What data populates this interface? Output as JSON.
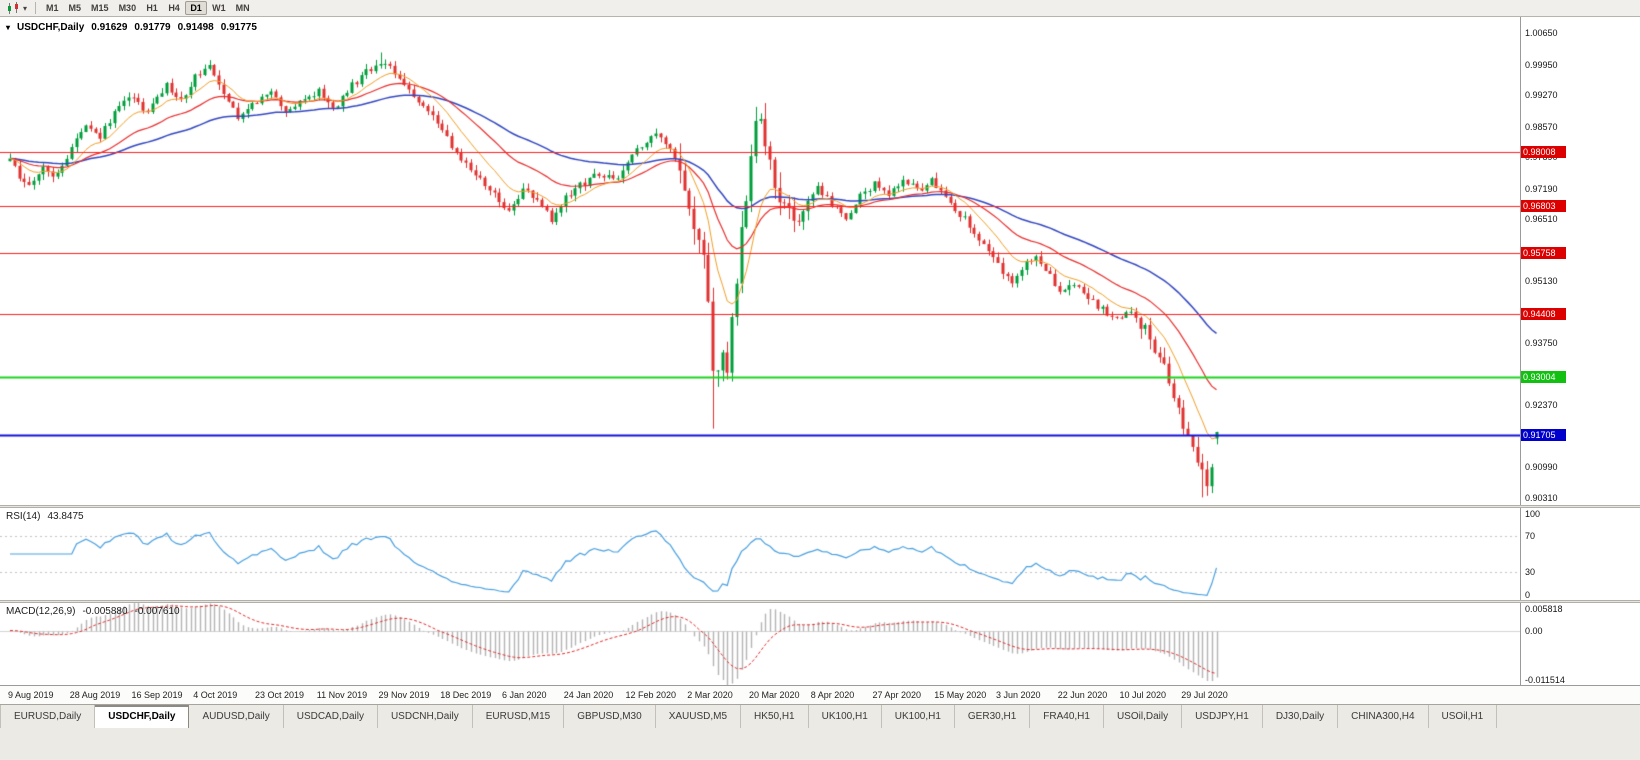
{
  "toolbar": {
    "timeframes": [
      "M1",
      "M5",
      "M15",
      "M30",
      "H1",
      "H4",
      "D1",
      "W1",
      "MN"
    ],
    "active_timeframe": "D1",
    "dropdown_icon": "▾"
  },
  "chart_data": {
    "type": "candlestick",
    "symbol": "USDCHF",
    "timeframe": "Daily",
    "title": "USDCHF,Daily",
    "title_marker": "▾",
    "ohlc": {
      "open": "0.91629",
      "high": "0.91779",
      "low": "0.91498",
      "close": "0.91775"
    },
    "colors": {
      "background": "#ffffff",
      "up": "#009e3c",
      "down": "#e03232",
      "axis_text": "#141414"
    },
    "price_axis": {
      "min": 0.9015,
      "max": 1.0101,
      "ticks": [
        "1.00650",
        "0.99950",
        "0.99270",
        "0.98570",
        "0.97890",
        "0.97190",
        "0.96510",
        "0.95820",
        "0.95130",
        "0.94440",
        "0.93750",
        "0.93060",
        "0.92370",
        "0.91680",
        "0.90990",
        "0.90310"
      ],
      "hidden_ticks": [
        "0.95820",
        "0.94440",
        "0.93060",
        "0.91680"
      ]
    },
    "time_axis": {
      "labels": [
        "9 Aug 2019",
        "28 Aug 2019",
        "16 Sep 2019",
        "4 Oct 2019",
        "23 Oct 2019",
        "11 Nov 2019",
        "29 Nov 2019",
        "18 Dec 2019",
        "6 Jan 2020",
        "24 Jan 2020",
        "12 Feb 2020",
        "2 Mar 2020",
        "20 Mar 2020",
        "8 Apr 2020",
        "27 Apr 2020",
        "15 May 2020",
        "3 Jun 2020",
        "22 Jun 2020",
        "10 Jul 2020",
        "29 Jul 2020"
      ],
      "label_indices": [
        0,
        13,
        26,
        39,
        52,
        65,
        78,
        91,
        104,
        117,
        130,
        143,
        156,
        169,
        182,
        195,
        208,
        221,
        234,
        247
      ]
    },
    "horizontal_lines": [
      {
        "price": 0.98008,
        "label": "0.98008",
        "color": "#ff2020",
        "badge": "#dd0000",
        "width": 1
      },
      {
        "price": 0.96803,
        "label": "0.96803",
        "color": "#ff2020",
        "badge": "#dd0000",
        "width": 1
      },
      {
        "price": 0.95758,
        "label": "0.95758",
        "color": "#ff2020",
        "badge": "#dd0000",
        "width": 1
      },
      {
        "price": 0.94408,
        "label": "0.94408",
        "color": "#ff2020",
        "badge": "#dd0000",
        "width": 1
      },
      {
        "price": 0.93004,
        "label": "0.93004",
        "color": "#1fd41f",
        "badge": "#12c012",
        "width": 2
      },
      {
        "price": 0.91705,
        "label": "0.91705",
        "color": "#1212d8",
        "badge": "#0000cc",
        "width": 2
      }
    ],
    "candles": {
      "count": 255,
      "seed": 20200810,
      "base_volatility": 0.0016,
      "volatility_zones": [
        {
          "from": 141,
          "to": 168,
          "vol": 0.0046
        },
        {
          "from": 238,
          "to": 253,
          "vol": 0.0028
        }
      ],
      "close_waypoints": [
        [
          0,
          0.978
        ],
        [
          2,
          0.9748
        ],
        [
          4,
          0.9725
        ],
        [
          7,
          0.9762
        ],
        [
          9,
          0.9738
        ],
        [
          11,
          0.977
        ],
        [
          13,
          0.9812
        ],
        [
          16,
          0.9862
        ],
        [
          19,
          0.983
        ],
        [
          22,
          0.9892
        ],
        [
          26,
          0.9922
        ],
        [
          29,
          0.9885
        ],
        [
          33,
          0.9948
        ],
        [
          36,
          0.9918
        ],
        [
          39,
          0.9968
        ],
        [
          42,
          0.999
        ],
        [
          45,
          0.9936
        ],
        [
          48,
          0.9882
        ],
        [
          52,
          0.9908
        ],
        [
          55,
          0.9942
        ],
        [
          58,
          0.9888
        ],
        [
          62,
          0.9916
        ],
        [
          65,
          0.9936
        ],
        [
          68,
          0.9896
        ],
        [
          72,
          0.9948
        ],
        [
          75,
          0.9978
        ],
        [
          78,
          1.0002
        ],
        [
          80,
          0.9994
        ],
        [
          83,
          0.9946
        ],
        [
          86,
          0.9906
        ],
        [
          89,
          0.9876
        ],
        [
          91,
          0.9846
        ],
        [
          94,
          0.9802
        ],
        [
          97,
          0.9762
        ],
        [
          100,
          0.9726
        ],
        [
          103,
          0.9692
        ],
        [
          105,
          0.9672
        ],
        [
          108,
          0.9716
        ],
        [
          111,
          0.9692
        ],
        [
          114,
          0.9652
        ],
        [
          117,
          0.9696
        ],
        [
          120,
          0.9726
        ],
        [
          124,
          0.9752
        ],
        [
          127,
          0.9736
        ],
        [
          130,
          0.9776
        ],
        [
          133,
          0.9816
        ],
        [
          136,
          0.9842
        ],
        [
          139,
          0.9812
        ],
        [
          141,
          0.9772
        ],
        [
          143,
          0.9692
        ],
        [
          145,
          0.9612
        ],
        [
          146,
          0.9562
        ],
        [
          147,
          0.9452
        ],
        [
          148,
          0.9332
        ],
        [
          149,
          0.9292
        ],
        [
          150,
          0.9342
        ],
        [
          151,
          0.9302
        ],
        [
          152,
          0.9422
        ],
        [
          153,
          0.9522
        ],
        [
          155,
          0.9702
        ],
        [
          157,
          0.9852
        ],
        [
          158,
          0.9872
        ],
        [
          159,
          0.9802
        ],
        [
          161,
          0.9732
        ],
        [
          163,
          0.9672
        ],
        [
          165,
          0.9642
        ],
        [
          167,
          0.9682
        ],
        [
          170,
          0.9722
        ],
        [
          173,
          0.9682
        ],
        [
          176,
          0.9656
        ],
        [
          179,
          0.97
        ],
        [
          182,
          0.9732
        ],
        [
          185,
          0.9706
        ],
        [
          188,
          0.9742
        ],
        [
          191,
          0.9716
        ],
        [
          194,
          0.9736
        ],
        [
          197,
          0.9702
        ],
        [
          200,
          0.9662
        ],
        [
          203,
          0.9626
        ],
        [
          206,
          0.9582
        ],
        [
          209,
          0.9532
        ],
        [
          211,
          0.9502
        ],
        [
          213,
          0.9546
        ],
        [
          216,
          0.9572
        ],
        [
          219,
          0.9522
        ],
        [
          221,
          0.9482
        ],
        [
          224,
          0.9506
        ],
        [
          227,
          0.9472
        ],
        [
          230,
          0.9452
        ],
        [
          233,
          0.9426
        ],
        [
          236,
          0.9446
        ],
        [
          239,
          0.9406
        ],
        [
          242,
          0.9342
        ],
        [
          244,
          0.9292
        ],
        [
          246,
          0.9232
        ],
        [
          248,
          0.9162
        ],
        [
          250,
          0.9102
        ],
        [
          252,
          0.9062
        ],
        [
          253,
          0.9112
        ],
        [
          254,
          0.91775
        ]
      ],
      "overrides": [
        {
          "i": 42,
          "high": 1.0005
        },
        {
          "i": 78,
          "high": 1.0022
        },
        {
          "i": 148,
          "low": 0.9185
        },
        {
          "i": 157,
          "high": 0.9901
        },
        {
          "i": 251,
          "low": 0.9032
        },
        {
          "i": 254,
          "open": 0.91629,
          "high": 0.91779,
          "low": 0.91498,
          "close": 0.91775
        }
      ]
    },
    "moving_averages": [
      {
        "name": "slow",
        "type": "ema",
        "period": 55,
        "color": "#3448c0",
        "width": 1.5
      },
      {
        "name": "medium",
        "type": "ema",
        "period": 25,
        "color": "#e83030",
        "width": 1.2
      },
      {
        "name": "fast",
        "type": "ema",
        "period": 10,
        "color": "#f0a028",
        "width": 1
      }
    ],
    "rsi": {
      "label": "RSI(14)",
      "value": "43.8475",
      "period": 14,
      "color": "#4aa0e0",
      "axis_labels": [
        "100",
        "70",
        "30",
        "0"
      ],
      "axis_levels": [
        100,
        70,
        30,
        0
      ],
      "dashed_levels": [
        70,
        30
      ]
    },
    "macd": {
      "label": "MACD(12,26,9)",
      "macd_value": "-0.005880",
      "signal_value": "-0.007610",
      "fast": 12,
      "slow": 26,
      "signal": 9,
      "axis_labels": [
        "0.005818",
        "0.00",
        "-0.011514"
      ],
      "axis_levels": [
        0.005818,
        0,
        -0.011514
      ],
      "axis_max": 0.005818,
      "axis_min": -0.011514,
      "histogram_color": "#b4b4b4",
      "signal_color": "#e03030"
    }
  },
  "tabs": {
    "active_index": 1,
    "items": [
      "EURUSD,Daily",
      "USDCHF,Daily",
      "AUDUSD,Daily",
      "USDCAD,Daily",
      "USDCNH,Daily",
      "EURUSD,M15",
      "GBPUSD,M30",
      "XAUUSD,M5",
      "HK50,H1",
      "UK100,H1",
      "UK100,H1",
      "GER30,H1",
      "FRA40,H1",
      "USOil,Daily",
      "USDJPY,H1",
      "DJ30,Daily",
      "CHINA300,H4",
      "USOil,H1"
    ]
  }
}
